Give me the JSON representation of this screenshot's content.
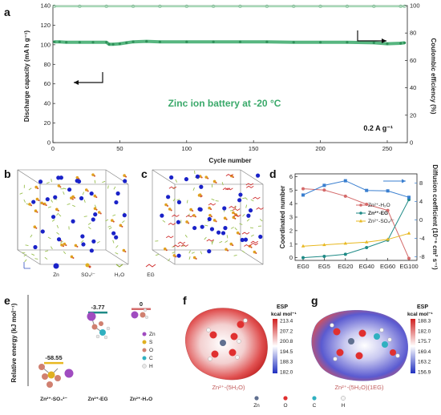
{
  "panel_a": {
    "label": "a",
    "annotation": "Zinc ion battery at -20 °C",
    "current_label": "0.2 A g⁻¹"
  },
  "panel_b": {
    "label": "b",
    "legend": [
      {
        "name": "Zn",
        "color": "#1a22c8"
      },
      {
        "name": "SO₄²⁻",
        "color": "#d07a10"
      },
      {
        "name": "H₂O",
        "color": "#90b040"
      },
      {
        "name": "EG",
        "color": "#d03030"
      }
    ]
  },
  "panel_c": {
    "label": "c"
  },
  "panel_d": {
    "label": "d",
    "legend": [
      {
        "name": "Zn²⁺-H₂O",
        "color": "#d46a6a"
      },
      {
        "name": "Zn²⁺-EG",
        "color": "#1e8a86"
      },
      {
        "name": "Zn²⁺-SO₄²⁻",
        "color": "#e8b820"
      }
    ]
  },
  "panel_e": {
    "label": "e",
    "legend": [
      {
        "name": "Zn",
        "color": "#a04cc0"
      },
      {
        "name": "S",
        "color": "#e0b020"
      },
      {
        "name": "O",
        "color": "#d08070"
      },
      {
        "name": "C",
        "color": "#30b0c0"
      },
      {
        "name": "H",
        "color": "#e8e8e8"
      }
    ]
  },
  "panel_f": {
    "label": "f",
    "esp_title": "ESP",
    "esp_unit": "kcal mol⁻¹",
    "ticks": [
      "213.4",
      "207.2",
      "200.8",
      "194.5",
      "188.3",
      "182.0"
    ],
    "caption": "Zn²⁺-(5H₂O)",
    "atom_legend": [
      "Zn",
      "O",
      "C",
      "H"
    ]
  },
  "panel_g": {
    "label": "g",
    "esp_title": "ESP",
    "esp_unit": "kcal mol⁻¹",
    "ticks": [
      "188.3",
      "182.0",
      "175.7",
      "169.4",
      "163.2",
      "156.9"
    ],
    "caption": "Zn²⁺-(5H₂O)(1EG)"
  },
  "chart_data": [
    {
      "id": "a",
      "type": "line",
      "title": "",
      "xlabel": "Cycle number",
      "ylabel": "Discharge capacity (mA h g⁻¹)",
      "y2label": "Coulombic efficiency (%)",
      "xlim": [
        0,
        265
      ],
      "ylim": [
        0,
        140
      ],
      "y2lim": [
        0,
        100
      ],
      "xticks": [
        0,
        50,
        100,
        150,
        200,
        250
      ],
      "yticks": [
        0,
        20,
        40,
        60,
        80,
        100,
        120,
        140
      ],
      "y2ticks": [
        0,
        20,
        40,
        60,
        80,
        100
      ],
      "series": [
        {
          "axis": "left",
          "x": [
            1,
            5,
            10,
            20,
            30,
            40,
            42,
            45,
            50,
            55,
            60,
            70,
            80,
            100,
            120,
            140,
            160,
            180,
            200,
            220,
            240,
            250,
            260,
            263
          ],
          "values": [
            103,
            103,
            102.5,
            102.5,
            102.5,
            102.5,
            100.5,
            100.5,
            101,
            102,
            103,
            103.5,
            103,
            103,
            103,
            103,
            103,
            102.5,
            102.5,
            102.5,
            102,
            101,
            101.5,
            102
          ]
        },
        {
          "axis": "right",
          "x": [
            1,
            20,
            40,
            60,
            80,
            100,
            120,
            140,
            160,
            180,
            200,
            220,
            240,
            260,
            263
          ],
          "values": [
            99.5,
            99.5,
            99.5,
            99.5,
            99.5,
            99.5,
            99.5,
            99.5,
            99.5,
            99.5,
            99.5,
            99.5,
            99.5,
            99.5,
            99.5
          ]
        }
      ]
    },
    {
      "id": "d",
      "type": "line",
      "title": "",
      "xlabel": "",
      "ylabel": "Coordinated number",
      "y2label": "Diffusion coefficient (10⁻⁶ cm² s⁻¹)",
      "categories": [
        "EG0",
        "EG5",
        "EG20",
        "EG40",
        "EG60",
        "EG100"
      ],
      "ylim": [
        -0.2,
        6.2
      ],
      "y2lim": [
        -8.8,
        10
      ],
      "yticks": [
        0,
        1,
        2,
        3,
        4,
        5,
        6
      ],
      "y2ticks": [
        -8,
        -4,
        0,
        4,
        8
      ],
      "series": [
        {
          "name": "Zn²⁺-H₂O",
          "axis": "left",
          "values": [
            5.1,
            5.0,
            4.55,
            3.95,
            3.5,
            -0.05
          ]
        },
        {
          "name": "Zn²⁺-EG",
          "axis": "left",
          "values": [
            0.0,
            0.1,
            0.25,
            0.75,
            1.3,
            4.3
          ]
        },
        {
          "name": "Zn²⁺-SO₄²⁻",
          "axis": "left",
          "values": [
            0.85,
            0.95,
            1.05,
            1.15,
            1.35,
            1.8
          ]
        },
        {
          "axis": "right",
          "values": [
            5.4,
            7.5,
            8.5,
            6.4,
            6.3,
            4.9
          ]
        }
      ]
    },
    {
      "id": "e",
      "type": "bar",
      "title": "",
      "ylabel": "Relative energy (kJ mol⁻¹)",
      "categories": [
        "Zn²⁺-SO₄²⁻",
        "Zn²⁺-EG",
        "Zn²⁺-H₂O"
      ],
      "values": [
        -58.55,
        -3.77,
        0
      ],
      "value_labels": [
        "-58.55",
        "-3.77",
        "0"
      ],
      "colors": [
        "#e8b820",
        "#1e8a86",
        "#d46a6a"
      ]
    }
  ]
}
